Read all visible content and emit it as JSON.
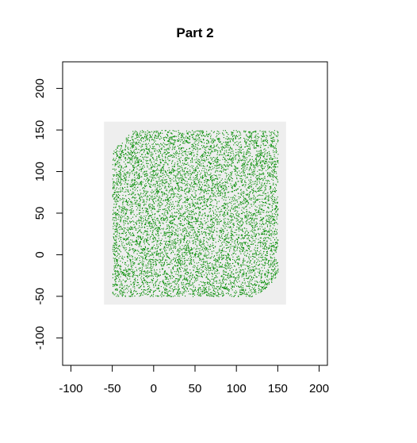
{
  "chart_data": {
    "type": "scatter",
    "title": "Part 2",
    "xlabel": "",
    "ylabel": "",
    "xlim": [
      -110,
      210
    ],
    "ylim": [
      -133,
      232
    ],
    "x_ticks": [
      -100,
      -50,
      0,
      50,
      100,
      150,
      200
    ],
    "x_tick_labels": [
      "-100",
      "-50",
      "0",
      "50",
      "100",
      "150",
      "200"
    ],
    "y_ticks": [
      -100,
      -50,
      0,
      50,
      100,
      150,
      200
    ],
    "y_tick_labels": [
      "-100",
      "-50",
      "0",
      "50",
      "100",
      "150",
      "200"
    ],
    "background_region": {
      "x": [
        -60,
        160
      ],
      "y": [
        -60,
        160
      ],
      "color": "#eeeeee"
    },
    "series": [
      {
        "color": "#008b00",
        "marker": "pixel-point",
        "density": "very dense, uniformly random",
        "region_polygon": [
          [
            -50,
            -50
          ],
          [
            125,
            -50
          ],
          [
            150,
            -25
          ],
          [
            150,
            150
          ],
          [
            -25,
            150
          ],
          [
            -50,
            125
          ]
        ]
      }
    ],
    "grid": false,
    "legend": "none"
  }
}
